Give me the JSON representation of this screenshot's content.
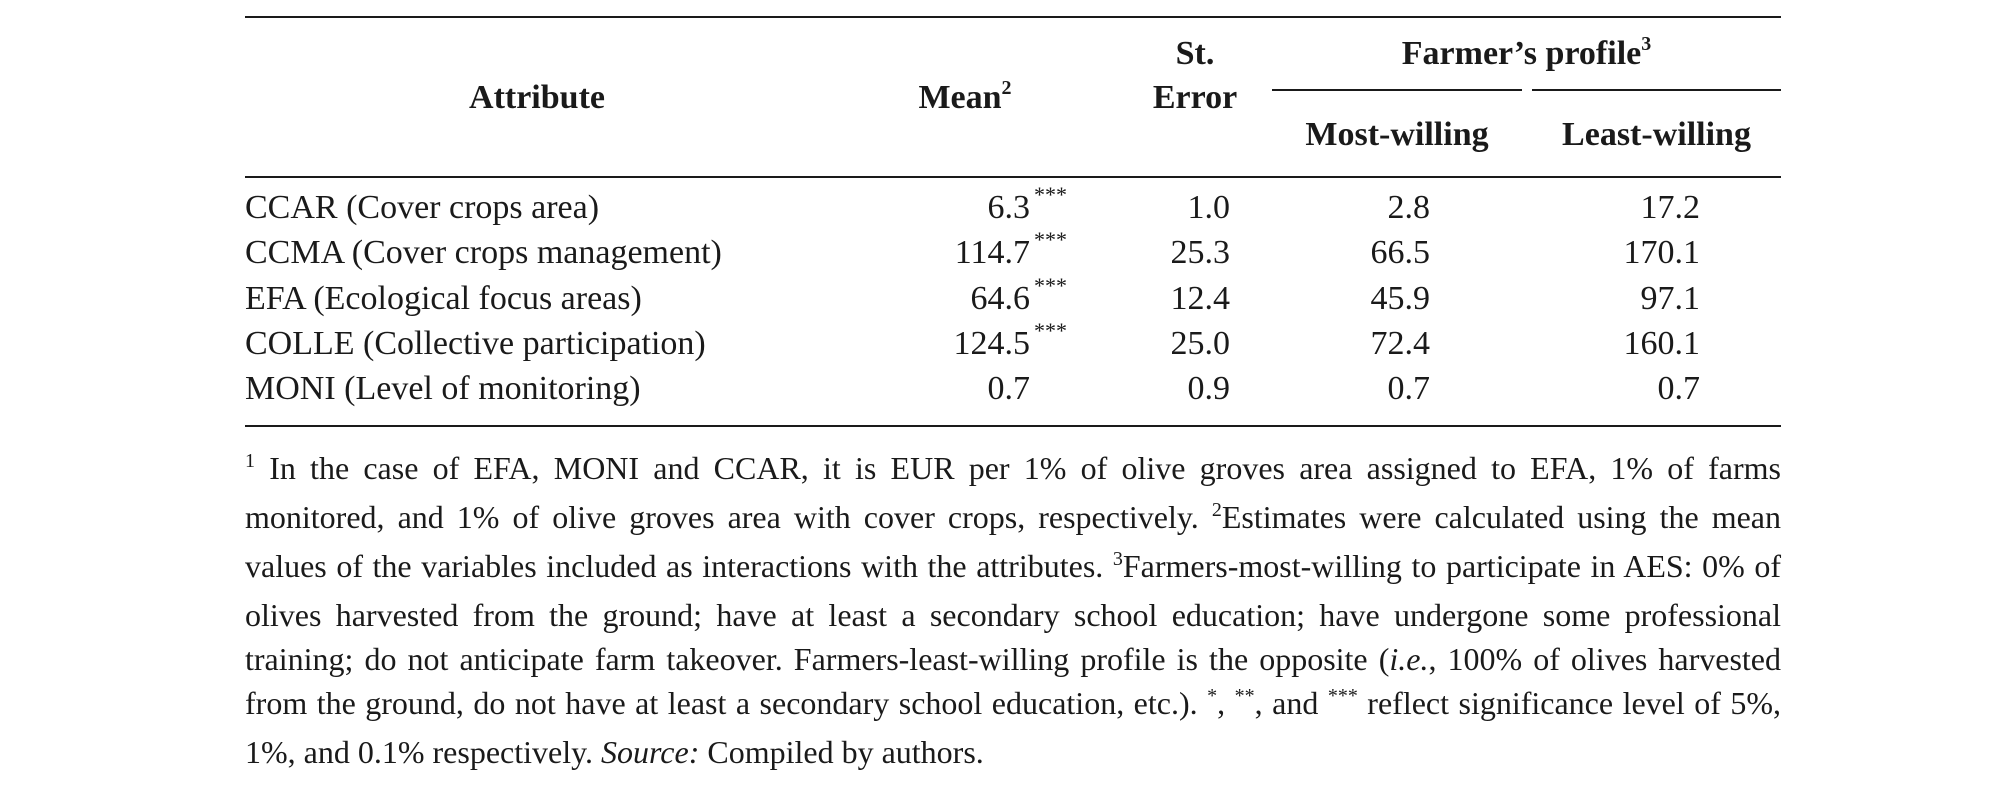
{
  "table": {
    "headers": {
      "attribute": "Attribute",
      "mean": "Mean",
      "mean_note": "2",
      "st_error_line1": "St.",
      "st_error_line2": "Error",
      "profile": "Farmer’s profile",
      "profile_note": "3",
      "most_willing": "Most-willing",
      "least_willing": "Least-willing"
    },
    "rows": [
      {
        "attribute": "CCAR (Cover crops area)",
        "mean": "6.3",
        "sig": "***",
        "st_error": "1.0",
        "most_willing": "2.8",
        "least_willing": "17.2"
      },
      {
        "attribute": "CCMA (Cover crops management)",
        "mean": "114.7",
        "sig": "***",
        "st_error": "25.3",
        "most_willing": "66.5",
        "least_willing": "170.1"
      },
      {
        "attribute": "EFA (Ecological focus areas)",
        "mean": "64.6",
        "sig": "***",
        "st_error": "12.4",
        "most_willing": "45.9",
        "least_willing": "97.1"
      },
      {
        "attribute": "COLLE (Collective participation)",
        "mean": "124.5",
        "sig": "***",
        "st_error": "25.0",
        "most_willing": "72.4",
        "least_willing": "160.1"
      },
      {
        "attribute": "MONI (Level of monitoring)",
        "mean": "0.7",
        "sig": "",
        "st_error": "0.9",
        "most_willing": "0.7",
        "least_willing": "0.7"
      }
    ]
  },
  "footnote": {
    "n1": "1",
    "t1": " In the case of EFA, MONI and CCAR, it is EUR per 1% of olive groves area assigned to EFA, 1% of farms monitored, and 1% of olive groves area with cover crops, respectively. ",
    "n2": "2",
    "t2": "Estimates were calculated using the mean values of the variables included as interactions with the attributes. ",
    "n3": "3",
    "t3": "Farmers-most-willing to participate in AES: 0% of olives harvested from the ground; have at least a secondary school education; have undergone some professional training; do not anticipate farm takeover. Farmers-least-willing profile is the opposite (",
    "ie": "i.e.",
    "t4": ", 100% of olives harvested from the ground, do not have at least a secondary school education, etc.). ",
    "s1": "*",
    "c1": ", ",
    "s2": "**",
    "c2": ", and ",
    "s3": "***",
    "t5": " reflect significance level of 5%, 1%, and 0.1% respectively. ",
    "source_label": "Source:",
    "source_text": " Compiled by authors."
  }
}
